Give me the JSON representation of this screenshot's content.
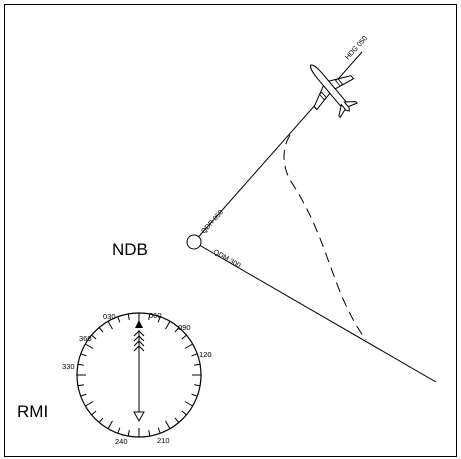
{
  "labels": {
    "ndb": "NDB",
    "rmi": "RMI",
    "heading": "HDG 050",
    "qdr": "QDR 050",
    "qdm": "QDM 300"
  },
  "rmi_dial": {
    "numbers": [
      "030",
      "060",
      "090",
      "120",
      "210",
      "240",
      "330",
      "360"
    ]
  },
  "colors": {
    "ink": "#000000",
    "background": "#ffffff"
  },
  "icons": [
    "airplane-icon",
    "ndb-beacon-icon",
    "rmi-needle-icon"
  ]
}
